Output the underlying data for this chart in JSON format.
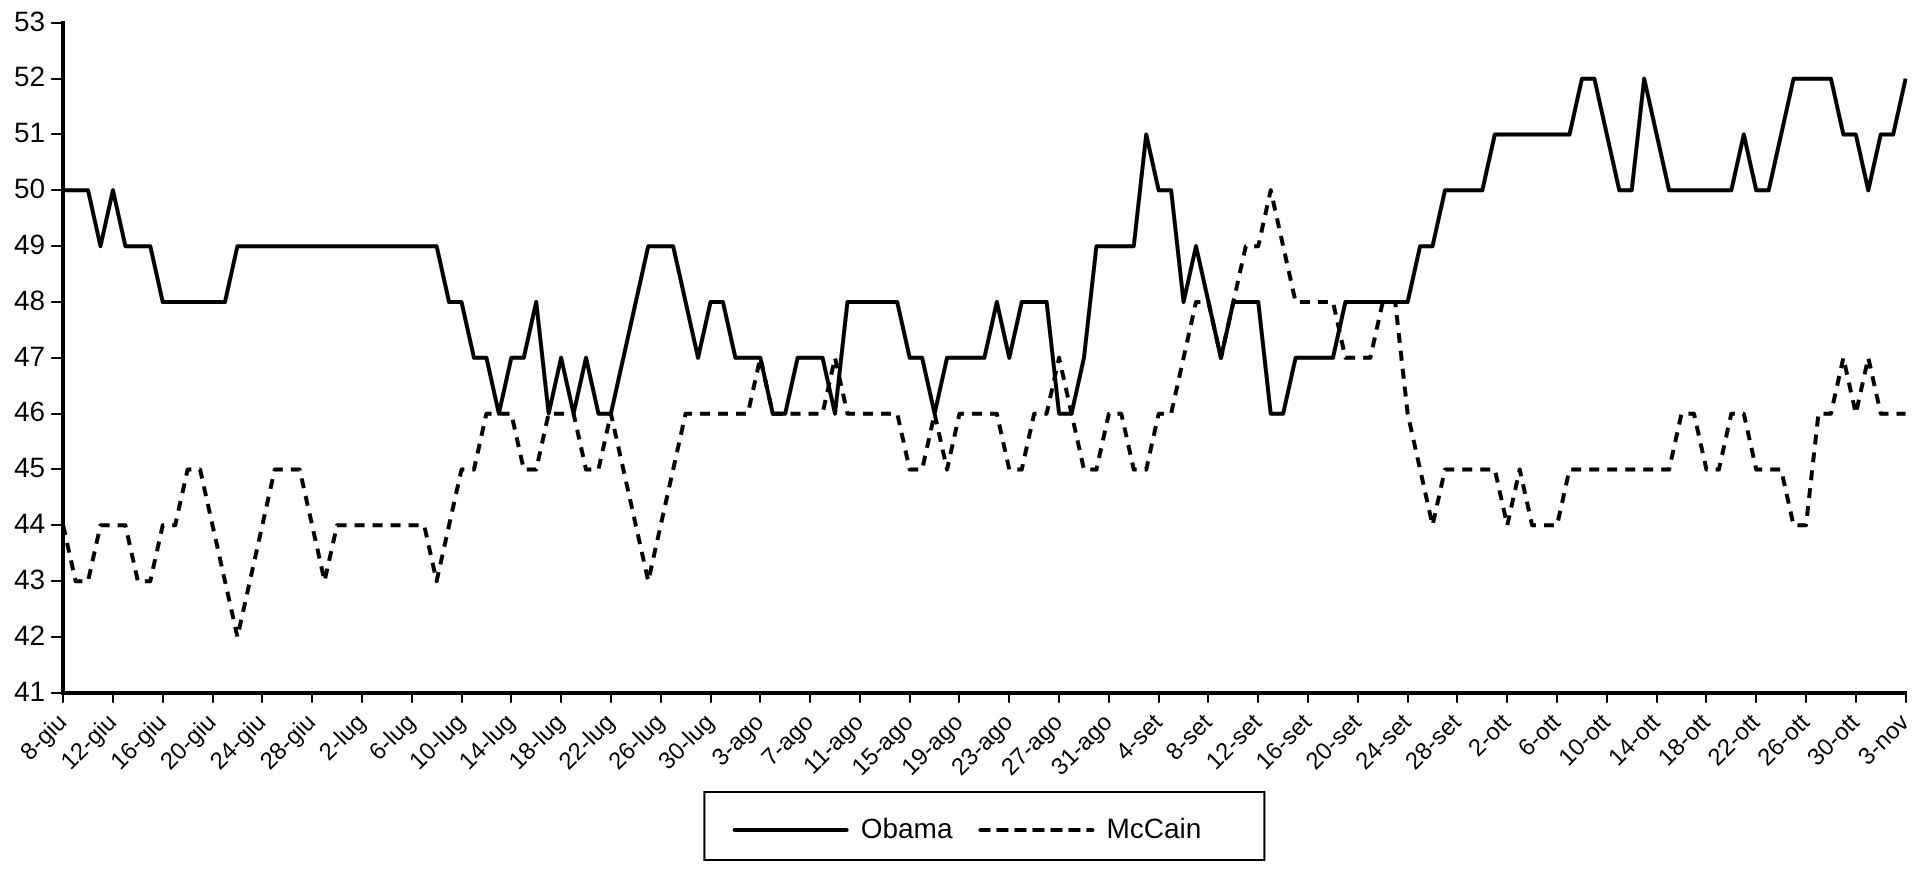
{
  "chart_data": {
    "type": "line",
    "categories": [
      "8-giu",
      null,
      null,
      null,
      "12-giu",
      null,
      null,
      null,
      "16-giu",
      null,
      null,
      null,
      "20-giu",
      null,
      null,
      null,
      "24-giu",
      null,
      null,
      null,
      "28-giu",
      null,
      null,
      null,
      "2-lug",
      null,
      null,
      null,
      "6-lug",
      null,
      null,
      null,
      "10-lug",
      null,
      null,
      null,
      "14-lug",
      null,
      null,
      null,
      "18-lug",
      null,
      null,
      null,
      "22-lug",
      null,
      null,
      null,
      "26-lug",
      null,
      null,
      null,
      "30-lug",
      null,
      null,
      null,
      "3-ago",
      null,
      null,
      null,
      "7-ago",
      null,
      null,
      null,
      "11-ago",
      null,
      null,
      null,
      "15-ago",
      null,
      null,
      null,
      "19-ago",
      null,
      null,
      null,
      "23-ago",
      null,
      null,
      null,
      "27-ago",
      null,
      null,
      null,
      "31-ago",
      null,
      null,
      null,
      "4-set",
      null,
      null,
      null,
      "8-set",
      null,
      null,
      null,
      "12-set",
      null,
      null,
      null,
      "16-set",
      null,
      null,
      null,
      "20-set",
      null,
      null,
      null,
      "24-set",
      null,
      null,
      null,
      "28-set",
      null,
      null,
      null,
      "2-ott",
      null,
      null,
      null,
      "6-ott",
      null,
      null,
      null,
      "10-ott",
      null,
      null,
      null,
      "14-ott",
      null,
      null,
      null,
      "18-ott",
      null,
      null,
      null,
      "22-ott",
      null,
      null,
      null,
      "26-ott",
      null,
      null,
      null,
      "30-ott",
      null,
      null,
      null,
      "3-nov"
    ],
    "series": [
      {
        "name": "Obama",
        "color": "#000000",
        "line_style": "solid",
        "values": [
          50,
          50,
          50,
          49,
          50,
          49,
          49,
          49,
          48,
          48,
          48,
          48,
          48,
          48,
          49,
          49,
          49,
          49,
          49,
          49,
          49,
          49,
          49,
          49,
          49,
          49,
          49,
          49,
          49,
          49,
          49,
          48,
          48,
          47,
          47,
          46,
          47,
          47,
          48,
          46,
          47,
          46,
          47,
          46,
          46,
          47,
          48,
          49,
          49,
          49,
          48,
          47,
          48,
          48,
          47,
          47,
          47,
          46,
          46,
          47,
          47,
          47,
          46,
          48,
          48,
          48,
          48,
          48,
          47,
          47,
          46,
          47,
          47,
          47,
          47,
          48,
          47,
          48,
          48,
          48,
          46,
          46,
          47,
          49,
          49,
          49,
          49,
          51,
          50,
          50,
          48,
          49,
          48,
          47,
          48,
          48,
          48,
          46,
          46,
          47,
          47,
          47,
          47,
          48,
          48,
          48,
          48,
          48,
          48,
          49,
          49,
          50,
          50,
          50,
          50,
          51,
          51,
          51,
          51,
          51,
          51,
          51,
          52,
          52,
          51,
          50,
          50,
          52,
          51,
          50,
          50,
          50,
          50,
          50,
          50,
          51,
          50,
          50,
          51,
          52,
          52,
          52,
          52,
          51,
          51,
          50,
          51,
          51,
          52
        ]
      },
      {
        "name": "McCain",
        "color": "#000000",
        "line_style": "dashed",
        "values": [
          44,
          43,
          43,
          44,
          44,
          44,
          43,
          43,
          44,
          44,
          45,
          45,
          44,
          43,
          42,
          43,
          44,
          45,
          45,
          45,
          44,
          43,
          44,
          44,
          44,
          44,
          44,
          44,
          44,
          44,
          43,
          44,
          45,
          45,
          46,
          46,
          46,
          45,
          45,
          46,
          46,
          46,
          45,
          45,
          46,
          45,
          44,
          43,
          44,
          45,
          46,
          46,
          46,
          46,
          46,
          46,
          47,
          46,
          46,
          46,
          46,
          46,
          47,
          46,
          46,
          46,
          46,
          46,
          45,
          45,
          46,
          45,
          46,
          46,
          46,
          46,
          45,
          45,
          46,
          46,
          47,
          46,
          45,
          45,
          46,
          46,
          45,
          45,
          46,
          46,
          47,
          48,
          48,
          47,
          48,
          49,
          49,
          50,
          49,
          48,
          48,
          48,
          48,
          47,
          47,
          47,
          48,
          48,
          46,
          45,
          44,
          45,
          45,
          45,
          45,
          45,
          44,
          45,
          44,
          44,
          44,
          45,
          45,
          45,
          45,
          45,
          45,
          45,
          45,
          45,
          46,
          46,
          45,
          45,
          46,
          46,
          45,
          45,
          45,
          44,
          44,
          46,
          46,
          47,
          46,
          47,
          46,
          46,
          46
        ]
      }
    ],
    "ylim": [
      41,
      53
    ],
    "yticks": [
      41,
      42,
      43,
      44,
      45,
      46,
      47,
      48,
      49,
      50,
      51,
      52,
      53
    ],
    "grid": false,
    "legend": "bottom",
    "marker": "none"
  }
}
